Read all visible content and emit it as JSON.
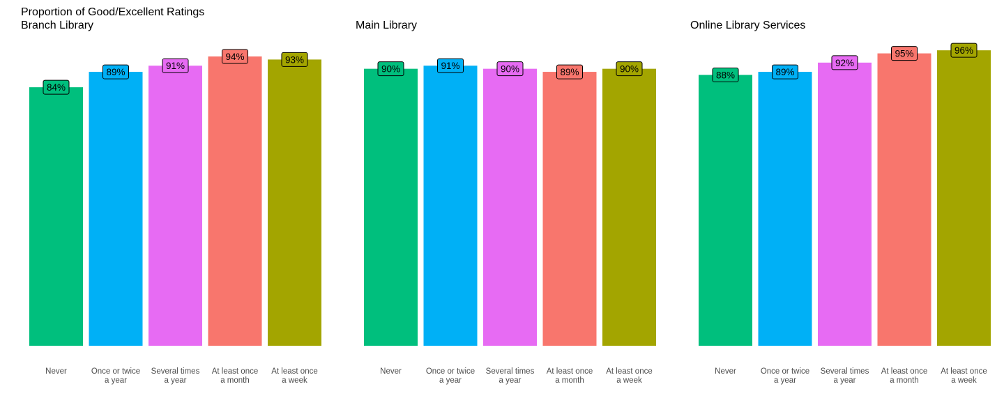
{
  "chart_data": {
    "type": "bar",
    "title": "Proportion of Good/Excellent Ratings",
    "ylim": [
      0,
      1
    ],
    "grid": false,
    "legend": "none",
    "categories": [
      [
        "Never"
      ],
      [
        "Once or twice",
        "a year"
      ],
      [
        "Several times",
        "a year"
      ],
      [
        "At least once",
        "a month"
      ],
      [
        "At least once",
        "a week"
      ]
    ],
    "colors": [
      "#00BF7D",
      "#00B0F6",
      "#E76BF3",
      "#F8766D",
      "#A3A500"
    ],
    "panels": [
      {
        "title": "Branch Library",
        "values": [
          0.84,
          0.89,
          0.91,
          0.94,
          0.93
        ],
        "labels": [
          "84%",
          "89%",
          "91%",
          "94%",
          "93%"
        ]
      },
      {
        "title": "Main Library",
        "values": [
          0.9,
          0.91,
          0.9,
          0.89,
          0.9
        ],
        "labels": [
          "90%",
          "91%",
          "90%",
          "89%",
          "90%"
        ]
      },
      {
        "title": "Online Library Services",
        "values": [
          0.88,
          0.89,
          0.92,
          0.95,
          0.96
        ],
        "labels": [
          "88%",
          "89%",
          "92%",
          "95%",
          "96%"
        ]
      }
    ]
  }
}
